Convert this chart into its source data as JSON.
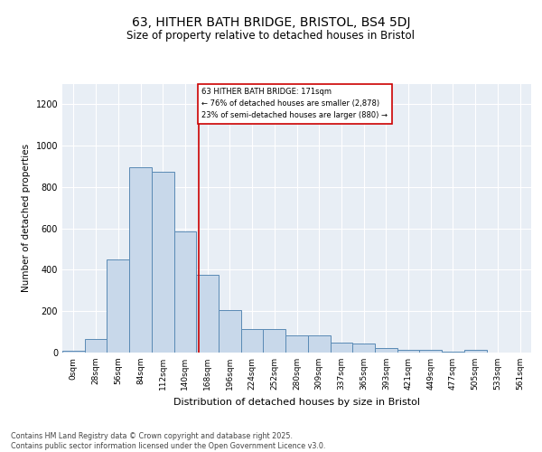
{
  "title_line1": "63, HITHER BATH BRIDGE, BRISTOL, BS4 5DJ",
  "title_line2": "Size of property relative to detached houses in Bristol",
  "xlabel": "Distribution of detached houses by size in Bristol",
  "ylabel": "Number of detached properties",
  "bin_labels": [
    "0sqm",
    "28sqm",
    "56sqm",
    "84sqm",
    "112sqm",
    "140sqm",
    "168sqm",
    "196sqm",
    "224sqm",
    "252sqm",
    "280sqm",
    "309sqm",
    "337sqm",
    "365sqm",
    "393sqm",
    "421sqm",
    "449sqm",
    "477sqm",
    "505sqm",
    "533sqm",
    "561sqm"
  ],
  "bar_values": [
    10,
    65,
    450,
    895,
    875,
    585,
    375,
    205,
    115,
    115,
    85,
    85,
    50,
    45,
    20,
    15,
    12,
    5,
    15,
    2,
    2
  ],
  "bar_color": "#c8d8ea",
  "bar_edge_color": "#5a8ab5",
  "annotation_text": "63 HITHER BATH BRIDGE: 171sqm\n← 76% of detached houses are smaller (2,878)\n23% of semi-detached houses are larger (880) →",
  "vline_color": "#cc0000",
  "annotation_box_color": "#ffffff",
  "annotation_box_edge": "#cc0000",
  "ylim": [
    0,
    1300
  ],
  "yticks": [
    0,
    200,
    400,
    600,
    800,
    1000,
    1200
  ],
  "bg_color": "#e8eef5",
  "footer_text": "Contains HM Land Registry data © Crown copyright and database right 2025.\nContains public sector information licensed under the Open Government Licence v3.0.",
  "title_fontsize": 10,
  "subtitle_fontsize": 8.5,
  "tick_fontsize": 6.5,
  "ylabel_fontsize": 7.5,
  "xlabel_fontsize": 8
}
